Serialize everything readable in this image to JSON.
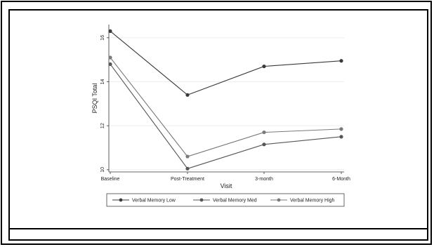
{
  "chart_data": {
    "type": "line",
    "title": "",
    "xlabel": "Visit",
    "ylabel": "PSQI Total",
    "categories": [
      "Baseline",
      "Post-Treatment",
      "3-month",
      "6-Month"
    ],
    "y_ticks": [
      "10",
      "12",
      "14",
      "16"
    ],
    "ylim": [
      9.9,
      16.6
    ],
    "grid": true,
    "legend_position": "bottom",
    "series": [
      {
        "name": "Verbal Memory Low",
        "values": [
          16.3,
          13.4,
          14.7,
          14.95
        ],
        "color": "#3a3a3a"
      },
      {
        "name": "Verbal Memory Med",
        "values": [
          14.8,
          10.05,
          11.15,
          11.5
        ],
        "color": "#555555"
      },
      {
        "name": "Verbal Memory High",
        "values": [
          15.1,
          10.6,
          11.7,
          11.85
        ],
        "color": "#7a7a7a"
      }
    ]
  }
}
